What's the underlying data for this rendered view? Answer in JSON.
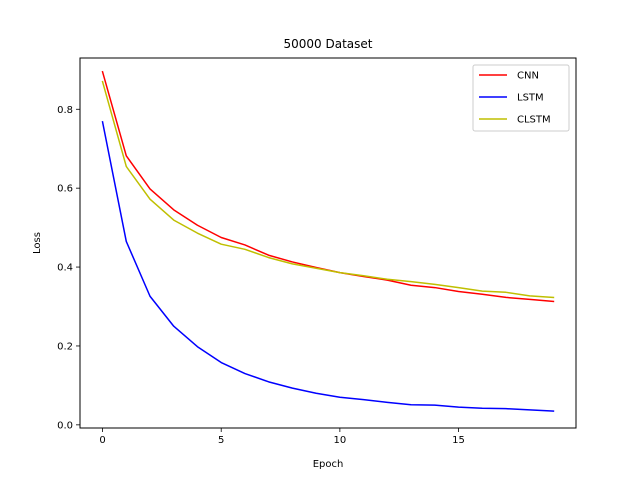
{
  "chart_data": {
    "type": "line",
    "title": "50000 Dataset",
    "xlabel": "Epoch",
    "ylabel": "Loss",
    "xlim": [
      -0.95,
      19.95
    ],
    "ylim": [
      -0.008,
      0.93
    ],
    "xticks": [
      0,
      5,
      10,
      15
    ],
    "yticks": [
      0.0,
      0.2,
      0.4,
      0.6,
      0.8
    ],
    "xtick_labels": [
      "0",
      "5",
      "10",
      "15"
    ],
    "ytick_labels": [
      "0.0",
      "0.2",
      "0.4",
      "0.6",
      "0.8"
    ],
    "grid": false,
    "legend_position": "top-right",
    "x": [
      0,
      1,
      2,
      3,
      4,
      5,
      6,
      7,
      8,
      9,
      10,
      11,
      12,
      13,
      14,
      15,
      16,
      17,
      18,
      19
    ],
    "series": [
      {
        "name": "CNN",
        "color": "#ff0000",
        "values": [
          0.895,
          0.682,
          0.598,
          0.545,
          0.506,
          0.475,
          0.456,
          0.43,
          0.413,
          0.399,
          0.386,
          0.376,
          0.367,
          0.354,
          0.348,
          0.338,
          0.331,
          0.323,
          0.318,
          0.313
        ]
      },
      {
        "name": "LSTM",
        "color": "#0000ff",
        "values": [
          0.768,
          0.465,
          0.326,
          0.25,
          0.198,
          0.158,
          0.13,
          0.109,
          0.093,
          0.08,
          0.07,
          0.064,
          0.057,
          0.051,
          0.05,
          0.045,
          0.042,
          0.041,
          0.038,
          0.035
        ]
      },
      {
        "name": "CLSTM",
        "color": "#bfbf00",
        "values": [
          0.87,
          0.655,
          0.572,
          0.519,
          0.486,
          0.458,
          0.445,
          0.424,
          0.408,
          0.397,
          0.386,
          0.378,
          0.369,
          0.363,
          0.356,
          0.348,
          0.339,
          0.336,
          0.327,
          0.323
        ]
      }
    ]
  }
}
